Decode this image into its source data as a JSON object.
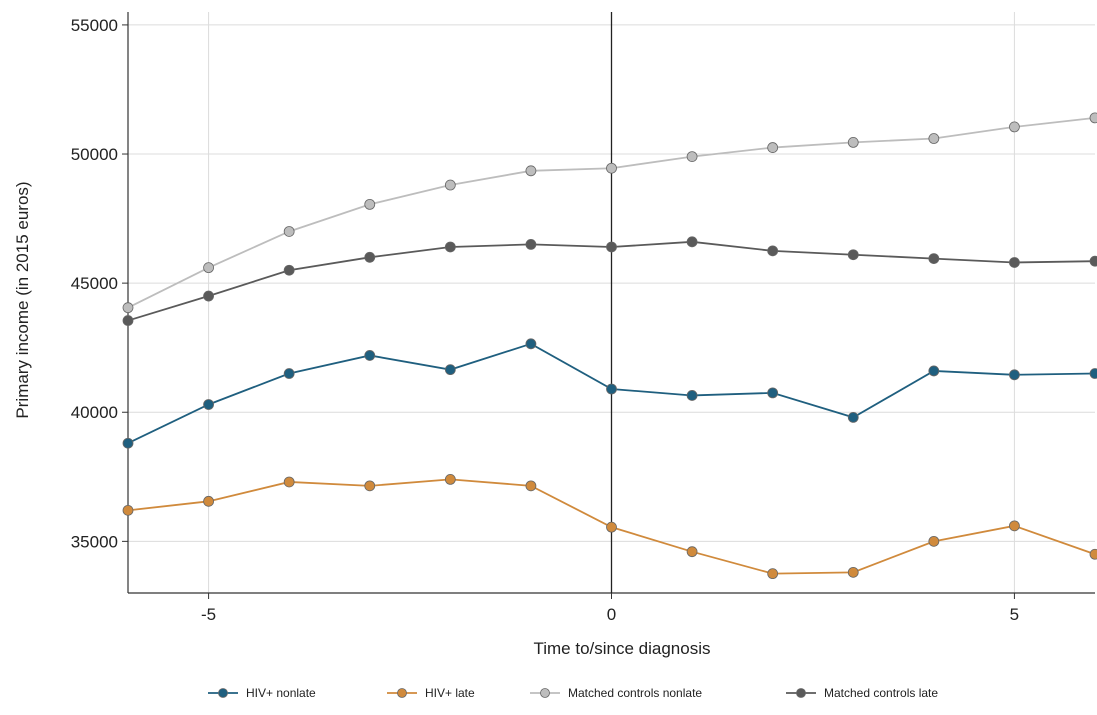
{
  "chart_data": {
    "type": "line",
    "xlabel": "Time to/since diagnosis",
    "ylabel": "Primary income (in 2015 euros)",
    "xlim": [
      -6,
      6
    ],
    "ylim": [
      33000,
      55500
    ],
    "xticks": [
      -5,
      0,
      5
    ],
    "yticks": [
      35000,
      40000,
      45000,
      50000,
      55000
    ],
    "x_tick_labels": [
      "-5",
      "0",
      "5"
    ],
    "y_tick_labels": [
      "35000",
      "40000",
      "45000",
      "50000",
      "55000"
    ],
    "grid": true,
    "reference_line_x": 0,
    "legend_position": "bottom",
    "x": [
      -6,
      -5,
      -4,
      -3,
      -2,
      -1,
      0,
      1,
      2,
      3,
      4,
      5,
      6
    ],
    "series": [
      {
        "name": "HIV+ nonlate",
        "color": "#1f5f7f",
        "values": [
          38800,
          40300,
          41500,
          42200,
          41650,
          42650,
          40900,
          40650,
          40750,
          39800,
          41600,
          41450,
          41500
        ]
      },
      {
        "name": "HIV+ late",
        "color": "#d08a3c",
        "values": [
          36200,
          36550,
          37300,
          37150,
          37400,
          37150,
          35550,
          34600,
          33750,
          33800,
          35000,
          35600,
          34500
        ]
      },
      {
        "name": "Matched controls nonlate",
        "color": "#bdbdbd",
        "values": [
          44050,
          45600,
          47000,
          48050,
          48800,
          49350,
          49450,
          49900,
          50250,
          50450,
          50600,
          51050,
          51400
        ]
      },
      {
        "name": "Matched controls late",
        "color": "#5a5a5a",
        "values": [
          43550,
          44500,
          45500,
          46000,
          46400,
          46500,
          46400,
          46600,
          46250,
          46100,
          45950,
          45800,
          45850
        ]
      }
    ]
  }
}
